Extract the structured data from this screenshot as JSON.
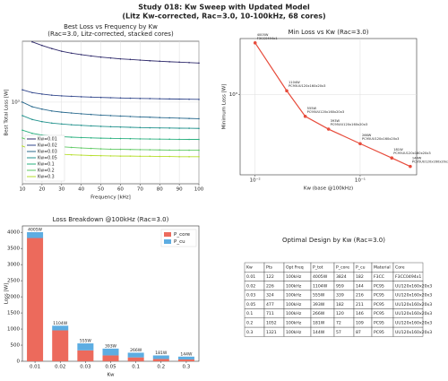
{
  "title": "Study 018: Kw Sweep with Updated Model",
  "subtitle": "(Litz Kw-corrected, Rac=3.0, 10-100kHz, 68 cores)",
  "chart_data": [
    {
      "type": "line",
      "title": "Best Loss vs Frequency by Kw",
      "subtitle": "(Rac=3.0, Litz-corrected, stacked cores)",
      "x_label": "Frequency [kHz]",
      "y_label": "Best Total Loss [W]",
      "x": [
        10,
        15,
        20,
        25,
        30,
        35,
        40,
        45,
        50,
        55,
        60,
        65,
        70,
        75,
        80,
        85,
        90,
        95,
        100
      ],
      "xlim": [
        10,
        100
      ],
      "xticks": [
        10,
        20,
        30,
        40,
        50,
        60,
        70,
        80,
        90,
        100
      ],
      "ylim": [
        55,
        8700
      ],
      "ylog": true,
      "yticks": [
        {
          "value": 1000,
          "label": "10³"
        }
      ],
      "grid": true,
      "legend": "lower left",
      "series": [
        {
          "name": "Kw=0.01",
          "color": "#2f2a6b",
          "values": [
            null,
            8500,
            7500,
            6700,
            6100,
            5700,
            5400,
            5150,
            4950,
            4800,
            4650,
            4550,
            4450,
            4350,
            4270,
            4200,
            4140,
            4080,
            4005
          ]
        },
        {
          "name": "Kw=0.02",
          "color": "#31468b",
          "values": [
            1550,
            1400,
            1330,
            1280,
            1250,
            1230,
            1210,
            1195,
            1180,
            1170,
            1160,
            1150,
            1140,
            1135,
            1128,
            1120,
            1115,
            1110,
            1104
          ]
        },
        {
          "name": "Kw=0.03",
          "color": "#2a6a8e",
          "values": [
            1000,
            850,
            780,
            730,
            700,
            680,
            660,
            645,
            630,
            620,
            610,
            600,
            592,
            585,
            578,
            572,
            566,
            560,
            555
          ]
        },
        {
          "name": "Kw=0.05",
          "color": "#21918c",
          "values": [
            620,
            540,
            500,
            475,
            460,
            448,
            438,
            430,
            423,
            418,
            413,
            409,
            405,
            402,
            400,
            398,
            396,
            395,
            393
          ]
        },
        {
          "name": "Kw=0.1",
          "color": "#2ab07f",
          "values": [
            370,
            330,
            310,
            300,
            293,
            288,
            284,
            281,
            278,
            276,
            274,
            273,
            271,
            270,
            269,
            268,
            267,
            266,
            266
          ]
        },
        {
          "name": "Kw=0.2",
          "color": "#5ec962",
          "values": [
            280,
            245,
            225,
            213,
            205,
            200,
            196,
            193,
            190,
            188,
            187,
            186,
            185,
            184,
            183,
            182,
            182,
            181,
            181
          ]
        },
        {
          "name": "Kw=0.3",
          "color": "#b5de2b",
          "values": [
            210,
            185,
            170,
            162,
            157,
            154,
            152,
            150,
            149,
            148,
            147,
            147,
            146,
            146,
            145,
            145,
            144,
            144,
            144
          ]
        }
      ]
    },
    {
      "type": "line",
      "title": "Min Loss vs Kw (Rac=3.0)",
      "x_label": "Kw (base @100kHz)",
      "y_label": "Minimum Loss [W]",
      "x": [
        0.01,
        0.02,
        0.03,
        0.05,
        0.1,
        0.2,
        0.3
      ],
      "xlim": [
        0.0072,
        0.345
      ],
      "xlog": true,
      "xticks": [
        {
          "value": 0.01,
          "label": "10⁻²"
        },
        {
          "value": 0.1,
          "label": "10⁻¹"
        }
      ],
      "ylim": [
        115,
        4500
      ],
      "ylog": true,
      "yticks": [
        {
          "value": 1000,
          "label": "10³"
        }
      ],
      "grid": true,
      "series": [
        {
          "color": "#e74c3c",
          "values": [
            4005,
            1104,
            555,
            393,
            266,
            181,
            144
          ],
          "value_labels": [
            "4005W",
            "1104W",
            "555W",
            "393W",
            "266W",
            "181W",
            "144W"
          ]
        }
      ],
      "point_labels": [
        "F3CC0494x1",
        "PC95UU120x160x20x3",
        "PC95UU120x160x20x3",
        "PC95UU120x160x20x3",
        "PC95UU120x160x20x3",
        "PC95UU120x160x20x3",
        "PC95UU120x160x20x3"
      ]
    },
    {
      "type": "stacked_bar",
      "title": "Loss Breakdown @100kHz (Rac=3.0)",
      "x_label": "Kw",
      "y_label": "Loss [W]",
      "categories": [
        "0.01",
        "0.02",
        "0.03",
        "0.05",
        "0.1",
        "0.2",
        "0.3"
      ],
      "ylim": [
        0,
        4200
      ],
      "yticks": [
        0,
        500,
        1000,
        1500,
        2000,
        2500,
        3000,
        3500,
        4000
      ],
      "legend": "upper right",
      "series": [
        {
          "name": "P_core",
          "color": "#ec6a5c",
          "values": [
            3824,
            959,
            339,
            182,
            120,
            72,
            57
          ]
        },
        {
          "name": "P_cu",
          "color": "#5dade2",
          "values": [
            182,
            144,
            216,
            211,
            146,
            109,
            87
          ]
        }
      ],
      "totals": [
        4005,
        1104,
        555,
        393,
        266,
        181,
        144
      ],
      "totals_labels": [
        "4005W",
        "1104W",
        "555W",
        "393W",
        "266W",
        "181W",
        "144W"
      ]
    }
  ],
  "table": {
    "title": "Optimal Design by Kw (Rac=3.0)",
    "columns": [
      "Kw",
      "Pts",
      "Opt Freq",
      "P_tot",
      "P_core",
      "P_cu",
      "Material",
      "Core"
    ],
    "rows": [
      [
        "0.01",
        "122",
        "100kHz",
        "4005W",
        "3824",
        "182",
        "F3CC",
        "F3CC0494x1"
      ],
      [
        "0.02",
        "226",
        "100kHz",
        "1104W",
        "959",
        "144",
        "PC95",
        "UU120x160x20x3"
      ],
      [
        "0.03",
        "324",
        "100kHz",
        "555W",
        "339",
        "216",
        "PC95",
        "UU120x160x20x3"
      ],
      [
        "0.05",
        "477",
        "100kHz",
        "393W",
        "182",
        "211",
        "PC95",
        "UU120x160x20x3"
      ],
      [
        "0.1",
        "711",
        "100kHz",
        "266W",
        "120",
        "146",
        "PC95",
        "UU120x160x20x3"
      ],
      [
        "0.2",
        "1052",
        "100kHz",
        "181W",
        "72",
        "109",
        "PC95",
        "UU120x160x20x3"
      ],
      [
        "0.3",
        "1321",
        "100kHz",
        "144W",
        "57",
        "87",
        "PC95",
        "UU120x160x20x3"
      ]
    ]
  }
}
